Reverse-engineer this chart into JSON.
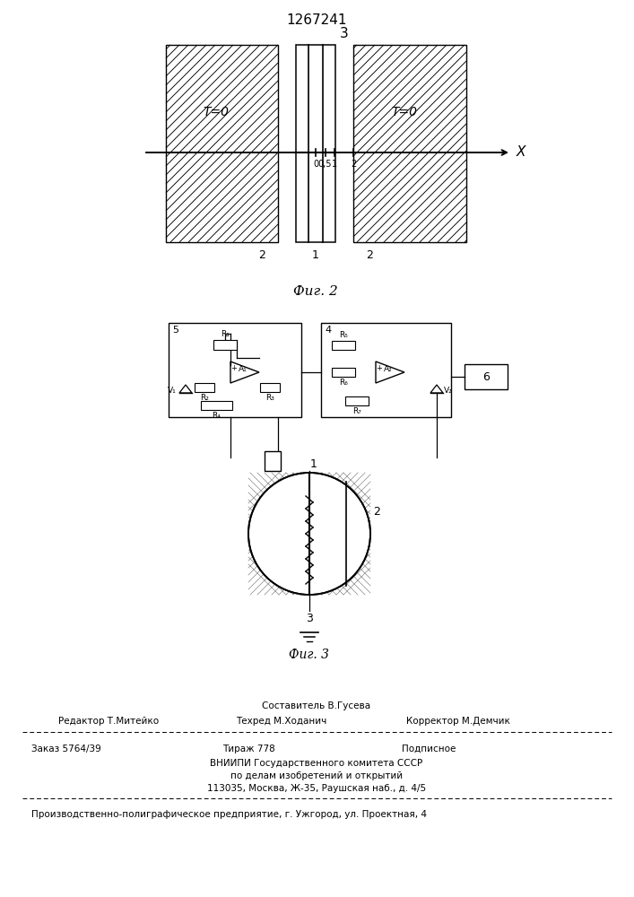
{
  "patent_number": "1267241",
  "fig2_label": "Фиг. 2",
  "fig3_label": "Фиг. 3",
  "bg_color": "#ffffff",
  "footer_sestavitel": "Составитель В.Гусева",
  "footer_col1": "Редактор Т.Митейко",
  "footer_col2": "Техред М.Ходанич",
  "footer_col3": "Корректор М.Демчик",
  "footer_zakaz": "Заказ 5764/39",
  "footer_tirazh": "Тираж 778",
  "footer_podpisnoe": "Подписное",
  "footer_vnipi": "ВНИИПИ Государственного комитета СССР",
  "footer_po_delam": "по делам изобретений и открытий",
  "footer_address": "113035, Москва, Ж-35, Раушская наб., д. 4/5",
  "footer_proizv": "Производственно-полиграфическое предприятие, г. Ужгород, ул. Проектная, 4"
}
